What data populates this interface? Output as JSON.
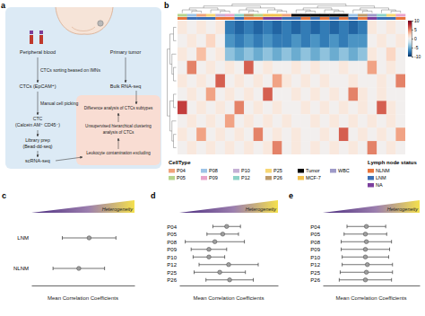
{
  "diagram": {
    "panel_label": "a",
    "nodes": [
      {
        "lines": [
          "Peripheral blood"
        ]
      },
      {
        "lines": [
          "Primary tumor"
        ]
      },
      {
        "lines": [
          "CTCs sorting beased on IMNs"
        ]
      },
      {
        "lines": [
          "CTCs (EpCAM⁺)"
        ]
      },
      {
        "lines": [
          "Bulk RNA-seq"
        ]
      },
      {
        "lines": [
          "Manual cell picking"
        ]
      },
      {
        "lines": [
          "CTC",
          "(Calcein AM⁺ CD45⁻)"
        ]
      },
      {
        "lines": [
          "Library prep",
          "(Bead-dd-seq)"
        ]
      },
      {
        "lines": [
          "scRNA-seq"
        ]
      },
      {
        "lines": [
          "Difference analysis of CTCs subtypes"
        ]
      },
      {
        "lines": [
          "Unsupervised hierarchical clustering",
          "analysis of CTCs"
        ]
      },
      {
        "lines": [
          "Leukocyte contamination excluding"
        ]
      }
    ]
  },
  "chart_data": [
    {
      "type": "heatmap",
      "panel_label": "b",
      "tick_labels": false,
      "cells": [
        [
          1,
          0,
          1,
          0,
          1,
          -7,
          -8,
          -7,
          -8,
          -7,
          -8,
          -7,
          -8,
          -7,
          -8,
          -7,
          -8,
          -7,
          -8,
          -7,
          1,
          0,
          1,
          0
        ],
        [
          0,
          1,
          0,
          2,
          0,
          -6,
          -7,
          -6,
          -7,
          -6,
          -7,
          -7,
          -6,
          -7,
          -6,
          -7,
          -6,
          -7,
          -6,
          -6,
          0,
          1,
          0,
          1
        ],
        [
          1,
          0,
          3,
          0,
          1,
          -4,
          -5,
          -4,
          -5,
          -4,
          -5,
          -4,
          -5,
          -4,
          -5,
          -4,
          -5,
          -4,
          -5,
          -4,
          1,
          0,
          2,
          0
        ],
        [
          0,
          5,
          0,
          1,
          0,
          1,
          0,
          6,
          0,
          1,
          0,
          0,
          1,
          0,
          1,
          0,
          0,
          1,
          0,
          0,
          4,
          0,
          1,
          0
        ],
        [
          1,
          0,
          1,
          0,
          6,
          0,
          1,
          0,
          1,
          0,
          4,
          1,
          0,
          1,
          0,
          1,
          0,
          0,
          1,
          0,
          0,
          1,
          0,
          5
        ],
        [
          0,
          1,
          0,
          4,
          0,
          1,
          0,
          1,
          0,
          6,
          0,
          0,
          1,
          0,
          1,
          0,
          1,
          0,
          5,
          1,
          0,
          1,
          0,
          0
        ],
        [
          7,
          0,
          1,
          0,
          1,
          0,
          5,
          0,
          1,
          0,
          1,
          0,
          0,
          1,
          0,
          1,
          0,
          1,
          0,
          1,
          0,
          6,
          1,
          0
        ],
        [
          0,
          1,
          0,
          1,
          0,
          4,
          0,
          1,
          0,
          1,
          0,
          1,
          0,
          0,
          1,
          0,
          1,
          0,
          1,
          0,
          1,
          0,
          1,
          0
        ],
        [
          1,
          0,
          4,
          0,
          1,
          0,
          1,
          0,
          5,
          0,
          1,
          0,
          1,
          0,
          0,
          1,
          0,
          6,
          0,
          1,
          0,
          1,
          0,
          4
        ],
        [
          0,
          1,
          0,
          1,
          0,
          1,
          0,
          1,
          0,
          1,
          5,
          0,
          1,
          0,
          1,
          0,
          1,
          0,
          1,
          0,
          5,
          0,
          1,
          0
        ]
      ],
      "colorbar_lim": [
        -10,
        10
      ],
      "colorbar_ticks": [
        10,
        5,
        0,
        -5,
        -10
      ],
      "column_celltype": [
        "P05",
        "P08",
        "P04",
        "P25",
        "P10",
        "P09",
        "P12",
        "P26",
        "P05",
        "MCF-7",
        "MCF-7",
        "P04",
        "Tumor",
        "Tumor",
        "Tumor",
        "Tumor",
        "Tumor",
        "Tumor",
        "P08",
        "P26",
        "WBC",
        "P12",
        "P25",
        "P09"
      ],
      "column_lymph_node_status": [
        "NLNM",
        "LNM",
        "LNM",
        "LNM",
        "NLNM",
        "NLNM",
        "LNM",
        "NLNM",
        "NLNM",
        "NA",
        "NA",
        "LNM",
        "LNM",
        "NLNM",
        "LNM",
        "NLNM",
        "LNM",
        "NLNM",
        "LNM",
        "NLNM",
        "NA",
        "LNM",
        "LNM",
        "NLNM"
      ],
      "celltype_legend": {
        "title": "CellType",
        "series": [
          {
            "name": "P04",
            "color": "#f0a37a"
          },
          {
            "name": "P05",
            "color": "#b5d48c"
          },
          {
            "name": "P08",
            "color": "#9dc3e6"
          },
          {
            "name": "P09",
            "color": "#e9a3c9"
          },
          {
            "name": "P10",
            "color": "#c5b0d5"
          },
          {
            "name": "P12",
            "color": "#8dd3c7"
          },
          {
            "name": "P25",
            "color": "#f7d774"
          },
          {
            "name": "P26",
            "color": "#bc9a6a"
          },
          {
            "name": "Tumor",
            "color": "#000000"
          },
          {
            "name": "MCF-7",
            "color": "#f2c14e"
          },
          {
            "name": "WBC",
            "color": "#9e9ac8"
          }
        ]
      },
      "lymph_legend": {
        "title": "Lymph node status",
        "series": [
          {
            "name": "NLNM",
            "color": "#e8743b"
          },
          {
            "name": "LNM",
            "color": "#3b6fb6"
          },
          {
            "name": "NA",
            "color": "#7b3f9e"
          }
        ]
      }
    },
    {
      "type": "errorbar",
      "panel_label": "c",
      "orientation": "horizontal",
      "tick_labels": "y",
      "color": "#9e9e9e",
      "annotation": "Heterogeneity",
      "xlabel": "Mean Correlation Coefficients",
      "xlim": [
        0,
        1
      ],
      "categories": [
        "LNM",
        "NLNM"
      ],
      "values": [
        0.56,
        0.46
      ],
      "errors": [
        0.26,
        0.25
      ]
    },
    {
      "type": "errorbar",
      "panel_label": "d",
      "orientation": "horizontal",
      "tick_labels": "y",
      "color": "#9e9e9e",
      "annotation": "Heterogeneity",
      "xlabel": "Mean Correlation Coefficients",
      "xlim": [
        0,
        1
      ],
      "categories": [
        "P04",
        "P05",
        "P08",
        "P09",
        "P10",
        "P12",
        "P25",
        "P26"
      ],
      "values": [
        0.48,
        0.44,
        0.36,
        0.3,
        0.3,
        0.5,
        0.41,
        0.51
      ],
      "errors": [
        0.14,
        0.16,
        0.3,
        0.18,
        0.16,
        0.3,
        0.26,
        0.24
      ]
    },
    {
      "type": "errorbar",
      "panel_label": "e",
      "orientation": "horizontal",
      "tick_labels": "y",
      "color": "#9e9e9e",
      "annotation": "Heterogeneity",
      "xlabel": "Mean Correlation Coefficients",
      "xlim": [
        0,
        1
      ],
      "categories": [
        "P04",
        "P05",
        "P08",
        "P09",
        "P10",
        "P12",
        "P25",
        "P26"
      ],
      "values": [
        0.45,
        0.44,
        0.45,
        0.44,
        0.44,
        0.46,
        0.45,
        0.44
      ],
      "errors": [
        0.2,
        0.22,
        0.26,
        0.25,
        0.24,
        0.26,
        0.27,
        0.27
      ]
    }
  ]
}
